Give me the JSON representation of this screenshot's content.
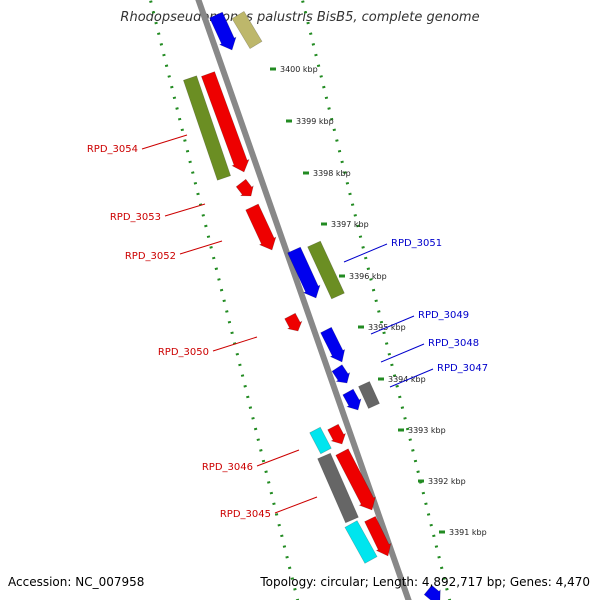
{
  "title": "Rhodopseudomonas palustris BisB5, complete genome",
  "footer": {
    "accession": "Accession: NC_007958",
    "topology": "Topology: circular; Length: 4,892,717 bp; Genes: 4,470"
  },
  "colors": {
    "backbone": "#888888",
    "dotted_ring": "#228B22",
    "red_gene": "#ee0000",
    "blue_gene": "#0000ee",
    "olive_gene": "#6b8e23",
    "gray_gene": "#666666",
    "cyan_gene": "#00e5ee",
    "khaki_gene": "#bdb76b",
    "label_red": "#cc0000",
    "label_blue": "#0000cc"
  },
  "kbp_ticks": [
    {
      "label": "3400 kbp"
    },
    {
      "label": "3399 kbp"
    },
    {
      "label": "3398 kbp"
    },
    {
      "label": "3397 kbp"
    },
    {
      "label": "3396 kbp"
    },
    {
      "label": "3395 kbp"
    },
    {
      "label": "3394 kbp"
    },
    {
      "label": "3393 kbp"
    },
    {
      "label": "3392 kbp"
    },
    {
      "label": "3391 kbp"
    }
  ],
  "gene_labels": [
    {
      "name": "RPD_3054",
      "color": "red"
    },
    {
      "name": "RPD_3053",
      "color": "red"
    },
    {
      "name": "RPD_3052",
      "color": "red"
    },
    {
      "name": "RPD_3050",
      "color": "red"
    },
    {
      "name": "RPD_3046",
      "color": "red"
    },
    {
      "name": "RPD_3045",
      "color": "red"
    },
    {
      "name": "RPD_3051",
      "color": "blue"
    },
    {
      "name": "RPD_3049",
      "color": "blue"
    },
    {
      "name": "RPD_3048",
      "color": "blue"
    },
    {
      "name": "RPD_3047",
      "color": "blue"
    }
  ]
}
